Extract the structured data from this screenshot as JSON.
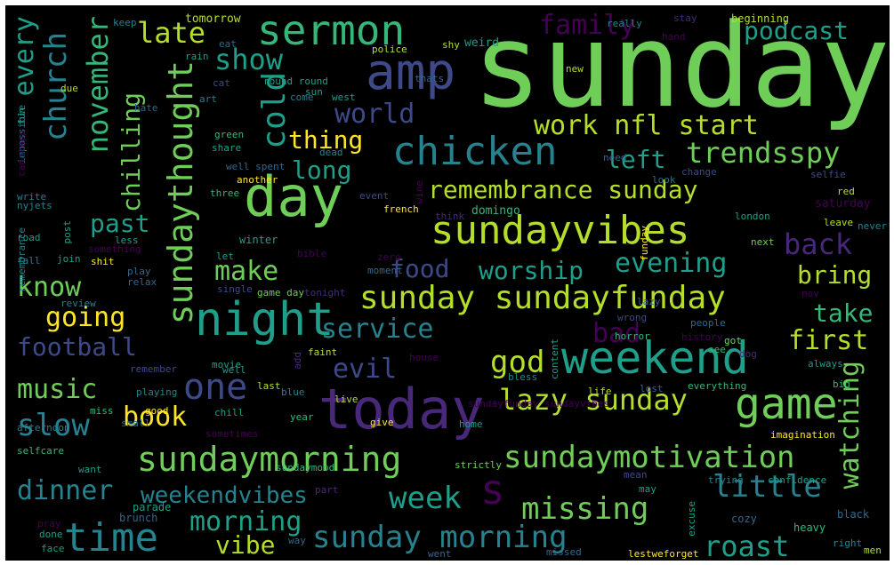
{
  "colors": {
    "background": "#000000",
    "palette": [
      "#440154",
      "#482878",
      "#3e4989",
      "#31688e",
      "#26828e",
      "#1f9e89",
      "#35b779",
      "#6ece58",
      "#b5de2b",
      "#fde725"
    ]
  },
  "words": [
    "sunday",
    "day",
    "today",
    "night",
    "weekend",
    "game",
    "amp",
    "sermon",
    "chicken",
    "sundayvibes",
    "sunday sundayfunday",
    "sundaymorning",
    "sundaymotivation",
    "time",
    "s",
    "sundaythought",
    "church",
    "remembrance sunday",
    "lazy sunday",
    "sunday morning",
    "missing",
    "trendsspy",
    "work nfl start",
    "one",
    "service",
    "god",
    "worship",
    "food",
    "back",
    "football",
    "music",
    "evil",
    "book",
    "little",
    "roast",
    "week",
    "dinner",
    "slow",
    "cold",
    "show",
    "late",
    "family",
    "podcast",
    "world",
    "november",
    "every",
    "past",
    "chilling",
    "thing",
    "long",
    "left",
    "know",
    "going",
    "make",
    "evening",
    "bring",
    "take",
    "first",
    "bad",
    "watching",
    "weekendvibes",
    "morning",
    "vibe",
    "tomorrow",
    "keep",
    "really",
    "stay",
    "beginning",
    "eat",
    "rain",
    "police",
    "thats",
    "shy",
    "weird",
    "new",
    "hand",
    "due",
    "cat",
    "art",
    "round round",
    "sun",
    "west",
    "come",
    "hate",
    "green",
    "dead",
    "share",
    "well spent",
    "another",
    "three",
    "change",
    "selfie",
    "red",
    "look",
    "need",
    "wine",
    "write",
    "nyjets",
    "impossible",
    "fun",
    "canotapp",
    "road",
    "less",
    "event",
    "french",
    "think",
    "domingo",
    "saturday",
    "leave",
    "never",
    "london",
    "next",
    "winter",
    "let",
    "bible",
    "fall",
    "post",
    "funday",
    "something",
    "join",
    "shit",
    "play",
    "relax",
    "zero",
    "moment",
    "single",
    "game day",
    "tonight",
    "review",
    "remembrance",
    "nov",
    "lazy",
    "wrong",
    "people",
    "history",
    "got",
    "horror",
    "faint",
    "add",
    "remember",
    "movie",
    "well",
    "content",
    "see",
    "dog",
    "always",
    "house",
    "bless",
    "last",
    "playing",
    "live",
    "blue",
    "life",
    "lost",
    "everything",
    "big",
    "good",
    "chill",
    "year",
    "afternoon",
    "selfcare",
    "miss",
    "sometimes",
    "sundayfunday sundayvibes",
    "sundaymood",
    "give",
    "small",
    "home",
    "imagination",
    "want",
    "strictly",
    "mean",
    "parade",
    "brunch",
    "trying",
    "confidence",
    "may",
    "pray",
    "part",
    "cozy",
    "heavy",
    "black",
    "done",
    "excuse",
    "face",
    "way",
    "went",
    "missed",
    "lestweforget",
    "right",
    "men"
  ]
}
